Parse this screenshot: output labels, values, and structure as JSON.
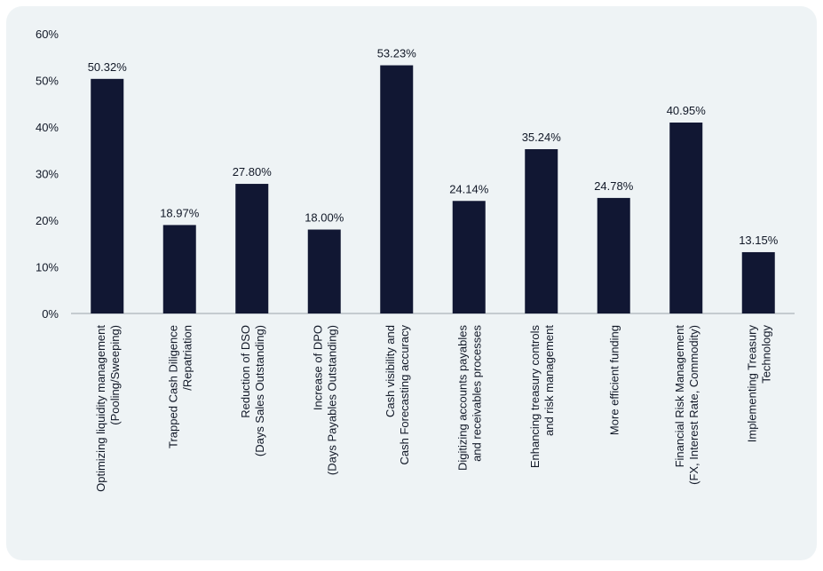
{
  "chart_data": {
    "type": "bar",
    "title": "",
    "xlabel": "",
    "ylabel": "",
    "ylim": [
      0,
      60
    ],
    "yticks": [
      "0%",
      "10%",
      "20%",
      "30%",
      "40%",
      "50%",
      "60%"
    ],
    "grid": false,
    "categories": [
      [
        "Optimizing liquidity management",
        "(Pooling/Sweeping)"
      ],
      [
        "Trapped Cash Diligence",
        "/Repatriation"
      ],
      [
        "Reduction of DSO",
        "(Days Sales Outstanding)"
      ],
      [
        "Increase of DPO",
        "(Days Payables Outstanding)"
      ],
      [
        "Cash visibility and",
        "Cash Forecasting accuracy"
      ],
      [
        "Digitizing accounts payables",
        "and receivables processes"
      ],
      [
        "Enhancing treasury controls",
        "and risk management"
      ],
      [
        "More efficient funding"
      ],
      [
        "Financial Risk Management",
        "(FX, Interest Rate, Commodity)"
      ],
      [
        "Implementing Treasury",
        "Technology"
      ]
    ],
    "values": [
      50.32,
      18.97,
      27.8,
      18.0,
      53.23,
      24.14,
      35.24,
      24.78,
      40.95,
      13.15
    ],
    "value_labels": [
      "50.32%",
      "18.97%",
      "27.80%",
      "18.00%",
      "53.23%",
      "24.14%",
      "35.24%",
      "24.78%",
      "40.95%",
      "13.15%"
    ],
    "bar_color": "#111733",
    "background_color": "#eef3f5"
  }
}
